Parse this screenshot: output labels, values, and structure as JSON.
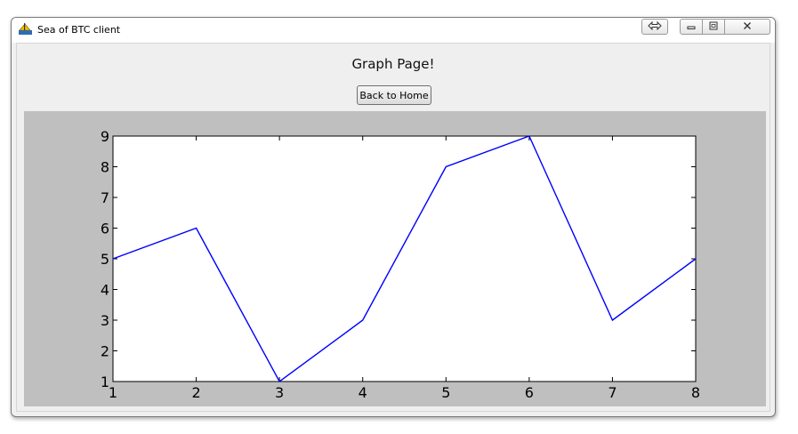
{
  "window": {
    "title": "Sea of BTC client"
  },
  "page": {
    "heading": "Graph Page!",
    "back_button": "Back to Home"
  },
  "colors": {
    "plot_background": "#bfbfbf",
    "axes_background": "#ffffff",
    "line": "#0000ff"
  },
  "icons": [
    "app-icon",
    "resize-icon",
    "minimize-icon",
    "maximize-icon",
    "close-icon"
  ],
  "chart_data": {
    "type": "line",
    "x": [
      1,
      2,
      3,
      4,
      5,
      6,
      7,
      8
    ],
    "series": [
      {
        "values": [
          5,
          6,
          1,
          3,
          8,
          9,
          3,
          5
        ]
      }
    ],
    "xlim": [
      1,
      8
    ],
    "ylim": [
      1,
      9
    ],
    "x_ticks": [
      "1",
      "2",
      "3",
      "4",
      "5",
      "6",
      "7",
      "8"
    ],
    "y_ticks": [
      "1",
      "2",
      "3",
      "4",
      "5",
      "6",
      "7",
      "8",
      "9"
    ],
    "grid": false,
    "title": "",
    "xlabel": "",
    "ylabel": ""
  }
}
